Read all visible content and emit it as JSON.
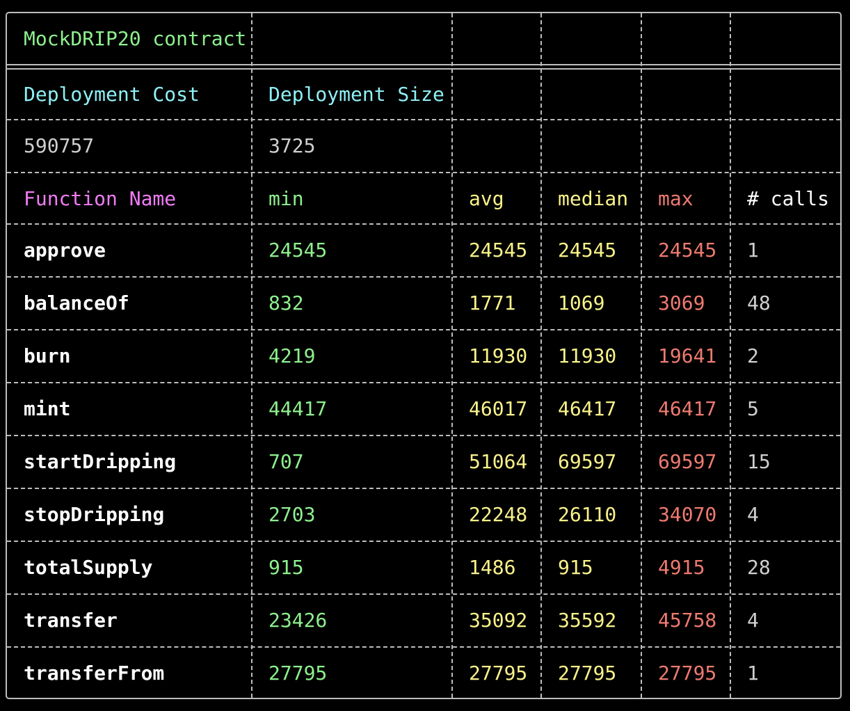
{
  "contract_title": "MockDRIP20 contract",
  "deployment": {
    "cost_label": "Deployment Cost",
    "size_label": "Deployment Size",
    "cost_value": "590757",
    "size_value": "3725"
  },
  "headers": {
    "name": "Function Name",
    "min": "min",
    "avg": "avg",
    "median": "median",
    "max": "max",
    "calls": "# calls"
  },
  "functions": [
    {
      "name": "approve",
      "min": "24545",
      "avg": "24545",
      "median": "24545",
      "max": "24545",
      "calls": "1"
    },
    {
      "name": "balanceOf",
      "min": "832",
      "avg": "1771",
      "median": "1069",
      "max": "3069",
      "calls": "48"
    },
    {
      "name": "burn",
      "min": "4219",
      "avg": "11930",
      "median": "11930",
      "max": "19641",
      "calls": "2"
    },
    {
      "name": "mint",
      "min": "44417",
      "avg": "46017",
      "median": "46417",
      "max": "46417",
      "calls": "5"
    },
    {
      "name": "startDripping",
      "min": "707",
      "avg": "51064",
      "median": "69597",
      "max": "69597",
      "calls": "15"
    },
    {
      "name": "stopDripping",
      "min": "2703",
      "avg": "22248",
      "median": "26110",
      "max": "34070",
      "calls": "4"
    },
    {
      "name": "totalSupply",
      "min": "915",
      "avg": "1486",
      "median": "915",
      "max": "4915",
      "calls": "28"
    },
    {
      "name": "transfer",
      "min": "23426",
      "avg": "35092",
      "median": "35592",
      "max": "45758",
      "calls": "4"
    },
    {
      "name": "transferFrom",
      "min": "27795",
      "avg": "27795",
      "median": "27795",
      "max": "27795",
      "calls": "1"
    }
  ],
  "colors": {
    "background": "#000000",
    "border": "#bdbdbd",
    "title": "#8ef08e",
    "deployment_label": "#8ff0f6",
    "deployment_value": "#cfcfcf",
    "function_header": "#f07cf4",
    "min": "#8ef08e",
    "avg": "#f9f28a",
    "median": "#f9f28a",
    "max": "#ee7a70",
    "calls_header": "#ffffff",
    "calls": "#cfcfcf",
    "function_name": "#ffffff"
  }
}
